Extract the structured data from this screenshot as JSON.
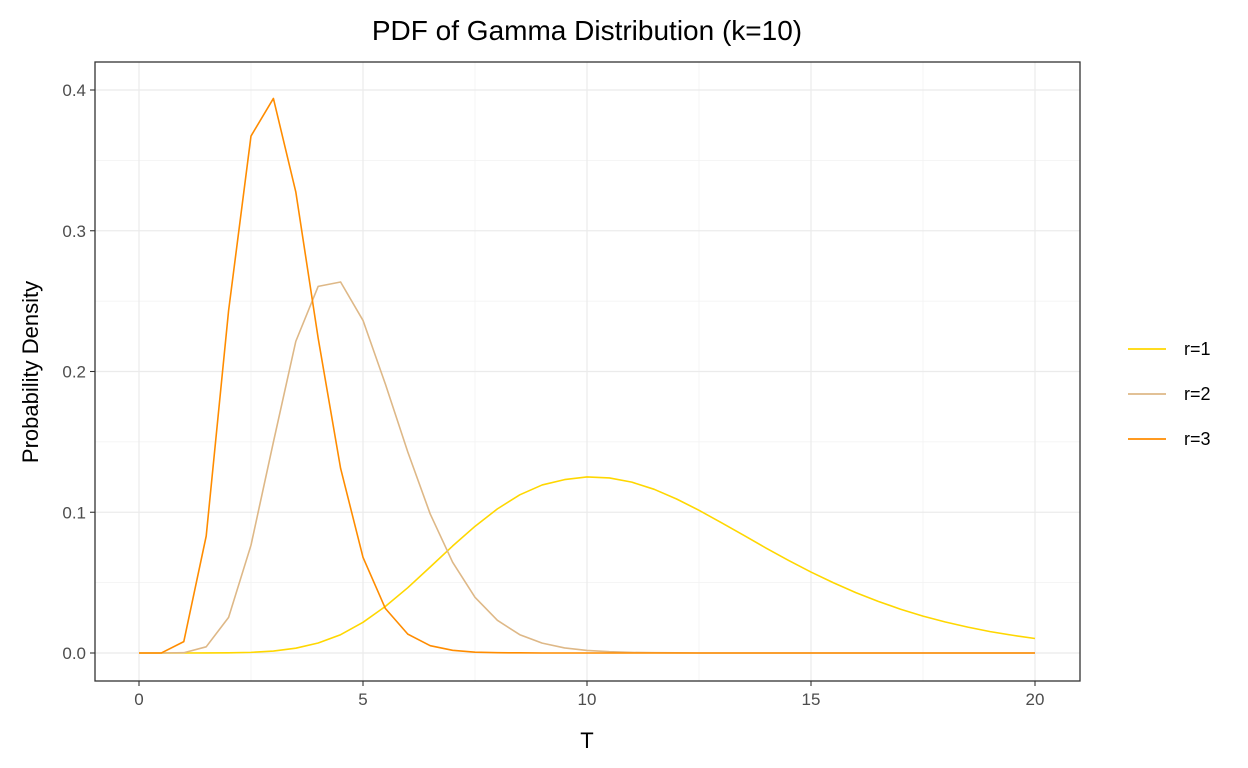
{
  "chart_data": {
    "type": "line",
    "title": "PDF of Gamma Distribution (k=10)",
    "xlabel": "T",
    "ylabel": "Probability Density",
    "xlim": [
      0,
      20
    ],
    "ylim": [
      0,
      0.4
    ],
    "x_ticks": [
      0,
      5,
      10,
      15,
      20
    ],
    "x_tick_labels": [
      "0",
      "5",
      "10",
      "15",
      "20"
    ],
    "y_ticks": [
      0.0,
      0.1,
      0.2,
      0.3,
      0.4
    ],
    "y_tick_labels": [
      "0.0",
      "0.1",
      "0.2",
      "0.3",
      "0.4"
    ],
    "grid": true,
    "legend_position": "right",
    "x": [
      0,
      0.5,
      1,
      1.5,
      2,
      2.5,
      3,
      3.5,
      4,
      4.5,
      5,
      5.5,
      6,
      6.5,
      7,
      7.5,
      8,
      8.5,
      9,
      9.5,
      10,
      10.5,
      11,
      11.5,
      12,
      12.5,
      13,
      13.5,
      14,
      14.5,
      15,
      15.5,
      16,
      16.5,
      17,
      17.5,
      18,
      18.5,
      19,
      19.5,
      20
    ],
    "series": [
      {
        "name": "r=1",
        "color": "#FFD700",
        "values": [
          0,
          0,
          3e-07,
          1.1e-05,
          9.6e-05,
          0.00045,
          0.0014,
          0.0034,
          0.0071,
          0.013,
          0.0218,
          0.0331,
          0.0464,
          0.0611,
          0.076,
          0.09,
          0.1024,
          0.1124,
          0.1194,
          0.1232,
          0.1251,
          0.1244,
          0.1214,
          0.1163,
          0.1094,
          0.1014,
          0.0926,
          0.0836,
          0.0745,
          0.0658,
          0.0575,
          0.0499,
          0.0429,
          0.0367,
          0.0311,
          0.0262,
          0.022,
          0.0184,
          0.0152,
          0.0126,
          0.0103
        ]
      },
      {
        "name": "r=2",
        "color": "#DEB887",
        "values": [
          0,
          0,
          0.00019,
          0.0044,
          0.0253,
          0.0766,
          0.1499,
          0.2214,
          0.2605,
          0.2636,
          0.2363,
          0.191,
          0.1428,
          0.0988,
          0.0645,
          0.0396,
          0.0232,
          0.013,
          0.007,
          0.0036,
          0.0018,
          0.0009,
          0.0004,
          0.0002,
          0.0001,
          0,
          0,
          0,
          0,
          0,
          0,
          0,
          0,
          0,
          0,
          0,
          0,
          0,
          0,
          0,
          0
        ]
      },
      {
        "name": "r=3",
        "color": "#FF8C00",
        "values": [
          0,
          4e-05,
          0.0081,
          0.0831,
          0.2433,
          0.3673,
          0.394,
          0.3276,
          0.2235,
          0.1312,
          0.068,
          0.0316,
          0.0134,
          0.0052,
          0.0019,
          0.0006,
          0.0002,
          0.0001,
          0,
          0,
          0,
          0,
          0,
          0,
          0,
          0,
          0,
          0,
          0,
          0,
          0,
          0,
          0,
          0,
          0,
          0,
          0,
          0,
          0,
          0,
          0
        ]
      }
    ]
  }
}
